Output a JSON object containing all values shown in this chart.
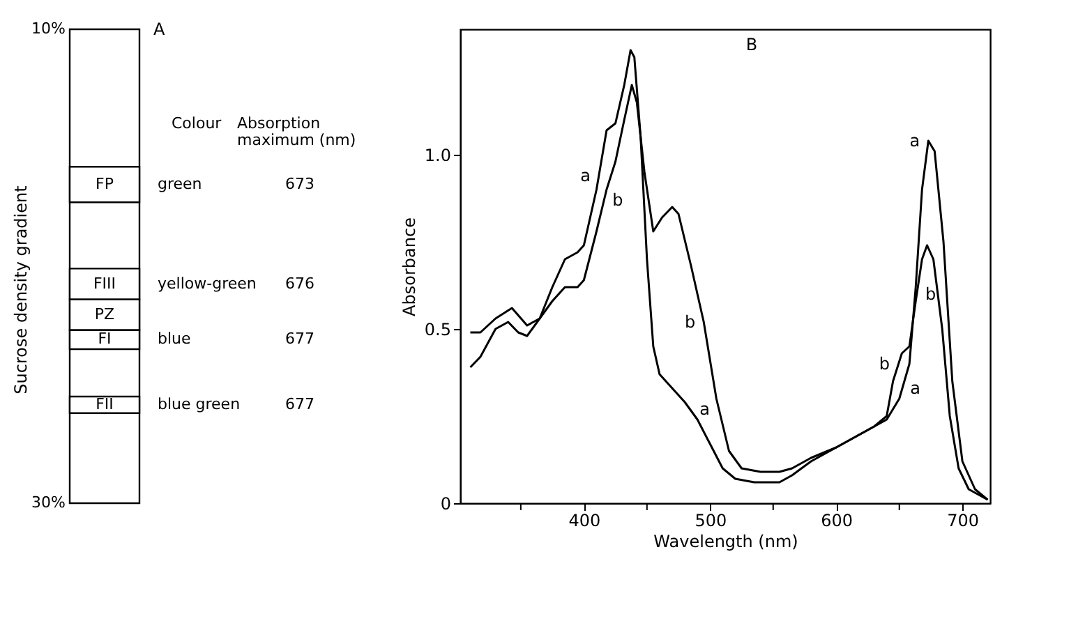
{
  "chart_data": [
    {
      "type": "other",
      "title": "A",
      "ylabel": "Sucrose density gradient",
      "annotations": [
        "10%",
        "30%",
        "Colour",
        "Absorption maximum (nm)",
        "FP",
        "green",
        "673",
        "FIII",
        "yellow-green",
        "676",
        "PZ",
        null,
        null,
        "FI",
        "blue",
        "677",
        "FII",
        "blue green",
        "677"
      ]
    },
    {
      "type": "line",
      "title": "B",
      "xlabel": "Wavelength (nm)",
      "ylabel": "Absorbance",
      "xlim": [
        302,
        722
      ],
      "ylim": [
        0,
        1.36
      ],
      "xticks": [
        {
          "value": 350,
          "label": null
        },
        400,
        {
          "value": 450,
          "label": null
        },
        500,
        {
          "value": 550,
          "label": null
        },
        600,
        {
          "value": 650,
          "label": null
        },
        700
      ],
      "yticks": [
        0,
        0.5,
        {
          "value": 1,
          "label": "1.0"
        }
      ],
      "grid": false,
      "line_style": "solid",
      "marker": "none",
      "series": [
        {
          "color": "#000000",
          "x": [
            310,
            318,
            330,
            343,
            355,
            365,
            375,
            385,
            395,
            400,
            410,
            418,
            425,
            432,
            437,
            440,
            445,
            450,
            455,
            460,
            470,
            480,
            490,
            500,
            510,
            520,
            535,
            555,
            565,
            580,
            600,
            615,
            630,
            640,
            650,
            658,
            663,
            668,
            673,
            678,
            685,
            692,
            700,
            710,
            720
          ],
          "values": [
            0.49,
            0.49,
            0.53,
            0.56,
            0.51,
            0.53,
            0.62,
            0.7,
            0.72,
            0.74,
            0.9,
            1.07,
            1.09,
            1.2,
            1.3,
            1.28,
            1.05,
            0.7,
            0.45,
            0.37,
            0.33,
            0.29,
            0.24,
            0.17,
            0.1,
            0.07,
            0.06,
            0.06,
            0.08,
            0.12,
            0.16,
            0.19,
            0.22,
            0.24,
            0.3,
            0.4,
            0.62,
            0.9,
            1.04,
            1.01,
            0.75,
            0.35,
            0.12,
            0.04,
            0.01
          ]
        },
        {
          "color": "#000000",
          "x": [
            310,
            318,
            330,
            340,
            348,
            355,
            365,
            375,
            385,
            395,
            400,
            410,
            418,
            425,
            432,
            438,
            442,
            448,
            455,
            462,
            470,
            475,
            485,
            495,
            505,
            515,
            525,
            540,
            555,
            565,
            580,
            600,
            615,
            630,
            640,
            645,
            652,
            658,
            663,
            668,
            672,
            677,
            684,
            690,
            697,
            705,
            720
          ],
          "values": [
            0.39,
            0.42,
            0.5,
            0.52,
            0.49,
            0.48,
            0.53,
            0.58,
            0.62,
            0.62,
            0.64,
            0.78,
            0.9,
            0.98,
            1.1,
            1.2,
            1.15,
            0.95,
            0.78,
            0.82,
            0.85,
            0.83,
            0.68,
            0.52,
            0.3,
            0.15,
            0.1,
            0.09,
            0.09,
            0.1,
            0.13,
            0.16,
            0.19,
            0.22,
            0.25,
            0.35,
            0.43,
            0.45,
            0.58,
            0.7,
            0.74,
            0.7,
            0.5,
            0.25,
            0.1,
            0.04,
            0.01
          ]
        }
      ],
      "annotations": [
        {
          "text": "a",
          "x": 412,
          "y": 0.94
        },
        {
          "text": "b",
          "x": 416,
          "y": 0.87
        },
        {
          "text": "b",
          "x": 495,
          "y": 0.52
        },
        {
          "text": "a",
          "x": 485,
          "y": 0.27
        },
        {
          "text": "a",
          "x": 673,
          "y": 1.04
        },
        {
          "text": "b",
          "x": 664,
          "y": 0.6
        },
        {
          "text": "b",
          "x": 649,
          "y": 0.4
        },
        {
          "text": "a",
          "x": 652,
          "y": 0.33
        }
      ]
    }
  ]
}
